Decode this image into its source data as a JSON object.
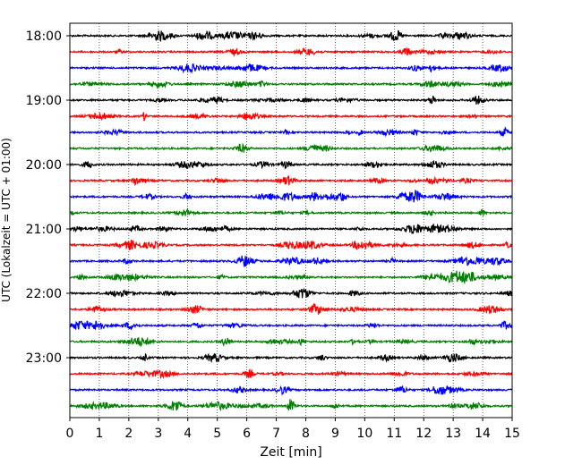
{
  "chart_data": {
    "type": "line",
    "title": "",
    "xlabel": "Zeit  [min]",
    "ylabel": "UTC (Lokalzeit = UTC + 01:00)",
    "xlim": [
      0,
      15
    ],
    "x_ticks": [
      "0",
      "1",
      "2",
      "3",
      "4",
      "5",
      "6",
      "7",
      "8",
      "9",
      "10",
      "11",
      "12",
      "13",
      "14",
      "15"
    ],
    "y_tick_labels": [
      "18:00",
      "19:00",
      "20:00",
      "21:00",
      "22:00",
      "23:00"
    ],
    "trace_interval_min": 15,
    "trace_count": 24,
    "grid": "vertical dotted at each minute",
    "trace_colors": [
      "#000000",
      "#ff0000",
      "#0000ff",
      "#008000"
    ],
    "series": [
      {
        "start": "18:00",
        "color": "#000000"
      },
      {
        "start": "18:15",
        "color": "#ff0000"
      },
      {
        "start": "18:30",
        "color": "#0000ff"
      },
      {
        "start": "18:45",
        "color": "#008000"
      },
      {
        "start": "19:00",
        "color": "#000000"
      },
      {
        "start": "19:15",
        "color": "#ff0000"
      },
      {
        "start": "19:30",
        "color": "#0000ff"
      },
      {
        "start": "19:45",
        "color": "#008000"
      },
      {
        "start": "20:00",
        "color": "#000000"
      },
      {
        "start": "20:15",
        "color": "#ff0000"
      },
      {
        "start": "20:30",
        "color": "#0000ff"
      },
      {
        "start": "20:45",
        "color": "#008000"
      },
      {
        "start": "21:00",
        "color": "#000000"
      },
      {
        "start": "21:15",
        "color": "#ff0000"
      },
      {
        "start": "21:30",
        "color": "#0000ff"
      },
      {
        "start": "21:45",
        "color": "#008000"
      },
      {
        "start": "22:00",
        "color": "#000000"
      },
      {
        "start": "22:15",
        "color": "#ff0000"
      },
      {
        "start": "22:30",
        "color": "#0000ff"
      },
      {
        "start": "22:45",
        "color": "#008000"
      },
      {
        "start": "23:00",
        "color": "#000000"
      },
      {
        "start": "23:15",
        "color": "#ff0000"
      },
      {
        "start": "23:30",
        "color": "#0000ff"
      },
      {
        "start": "23:45",
        "color": "#008000"
      }
    ]
  }
}
